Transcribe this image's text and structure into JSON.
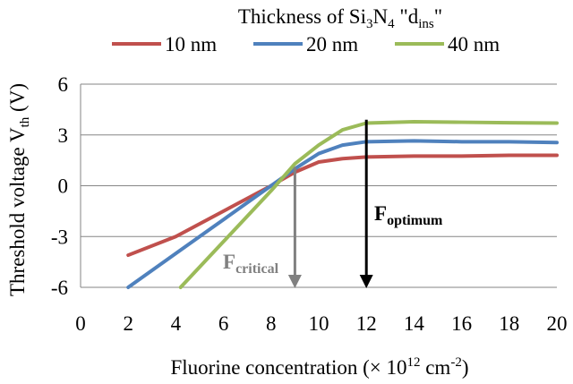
{
  "chart_data": {
    "type": "line",
    "legend": {
      "title_prefix": "Thickness of Si",
      "title_sub1": "3",
      "title_mid": "N",
      "title_sub2": "4",
      "title_suffix": " \"d",
      "title_sub3": "ins",
      "title_end": "\"",
      "placement": "top"
    },
    "xlabel": {
      "prefix": "Fluorine concentration (× 10",
      "sup1": "12",
      "mid": " cm",
      "sup2": "-2",
      "suffix": ")"
    },
    "ylabel": {
      "prefix": "Threshold voltage V",
      "sub": "th",
      "suffix": " (V)"
    },
    "xlim": [
      0,
      20
    ],
    "ylim": [
      -6,
      6
    ],
    "x_ticks": [
      0,
      2,
      4,
      6,
      8,
      10,
      12,
      14,
      16,
      18,
      20
    ],
    "y_ticks": [
      -6,
      -3,
      0,
      3,
      6
    ],
    "y_tick_labels": [
      "-6",
      "-3",
      "0",
      "3",
      "6"
    ],
    "grid": "horizontal",
    "series": [
      {
        "name": "10 nm",
        "color": "#C0504D",
        "points": [
          [
            2,
            -4.1
          ],
          [
            4,
            -3.0
          ],
          [
            6,
            -1.5
          ],
          [
            8,
            0.0
          ],
          [
            9,
            0.8
          ],
          [
            10,
            1.4
          ],
          [
            11,
            1.6
          ],
          [
            12,
            1.7
          ],
          [
            14,
            1.75
          ],
          [
            16,
            1.75
          ],
          [
            18,
            1.8
          ],
          [
            20,
            1.8
          ]
        ]
      },
      {
        "name": "20 nm",
        "color": "#4F81BD",
        "points": [
          [
            2,
            -6.0
          ],
          [
            4,
            -4.0
          ],
          [
            6,
            -2.0
          ],
          [
            8,
            0.0
          ],
          [
            9,
            1.0
          ],
          [
            10,
            1.9
          ],
          [
            11,
            2.4
          ],
          [
            12,
            2.6
          ],
          [
            14,
            2.65
          ],
          [
            16,
            2.6
          ],
          [
            18,
            2.6
          ],
          [
            20,
            2.55
          ]
        ]
      },
      {
        "name": "40 nm",
        "color": "#9BBB59",
        "points": [
          [
            4.2,
            -6.0
          ],
          [
            6,
            -3.3
          ],
          [
            8,
            -0.3
          ],
          [
            9,
            1.3
          ],
          [
            10,
            2.4
          ],
          [
            11,
            3.3
          ],
          [
            12,
            3.7
          ],
          [
            14,
            3.78
          ],
          [
            16,
            3.75
          ],
          [
            18,
            3.72
          ],
          [
            20,
            3.7
          ]
        ]
      }
    ],
    "annotations": [
      {
        "id": "critical",
        "label_main": "F",
        "label_sub": "critical",
        "x": 9,
        "y_from": 1.1,
        "y_to": -6.0,
        "color": "#808080"
      },
      {
        "id": "optimum",
        "label_main": "F",
        "label_sub": "optimum",
        "x": 12,
        "y_from": 3.9,
        "y_to": -6.0,
        "color": "#000000"
      }
    ]
  }
}
